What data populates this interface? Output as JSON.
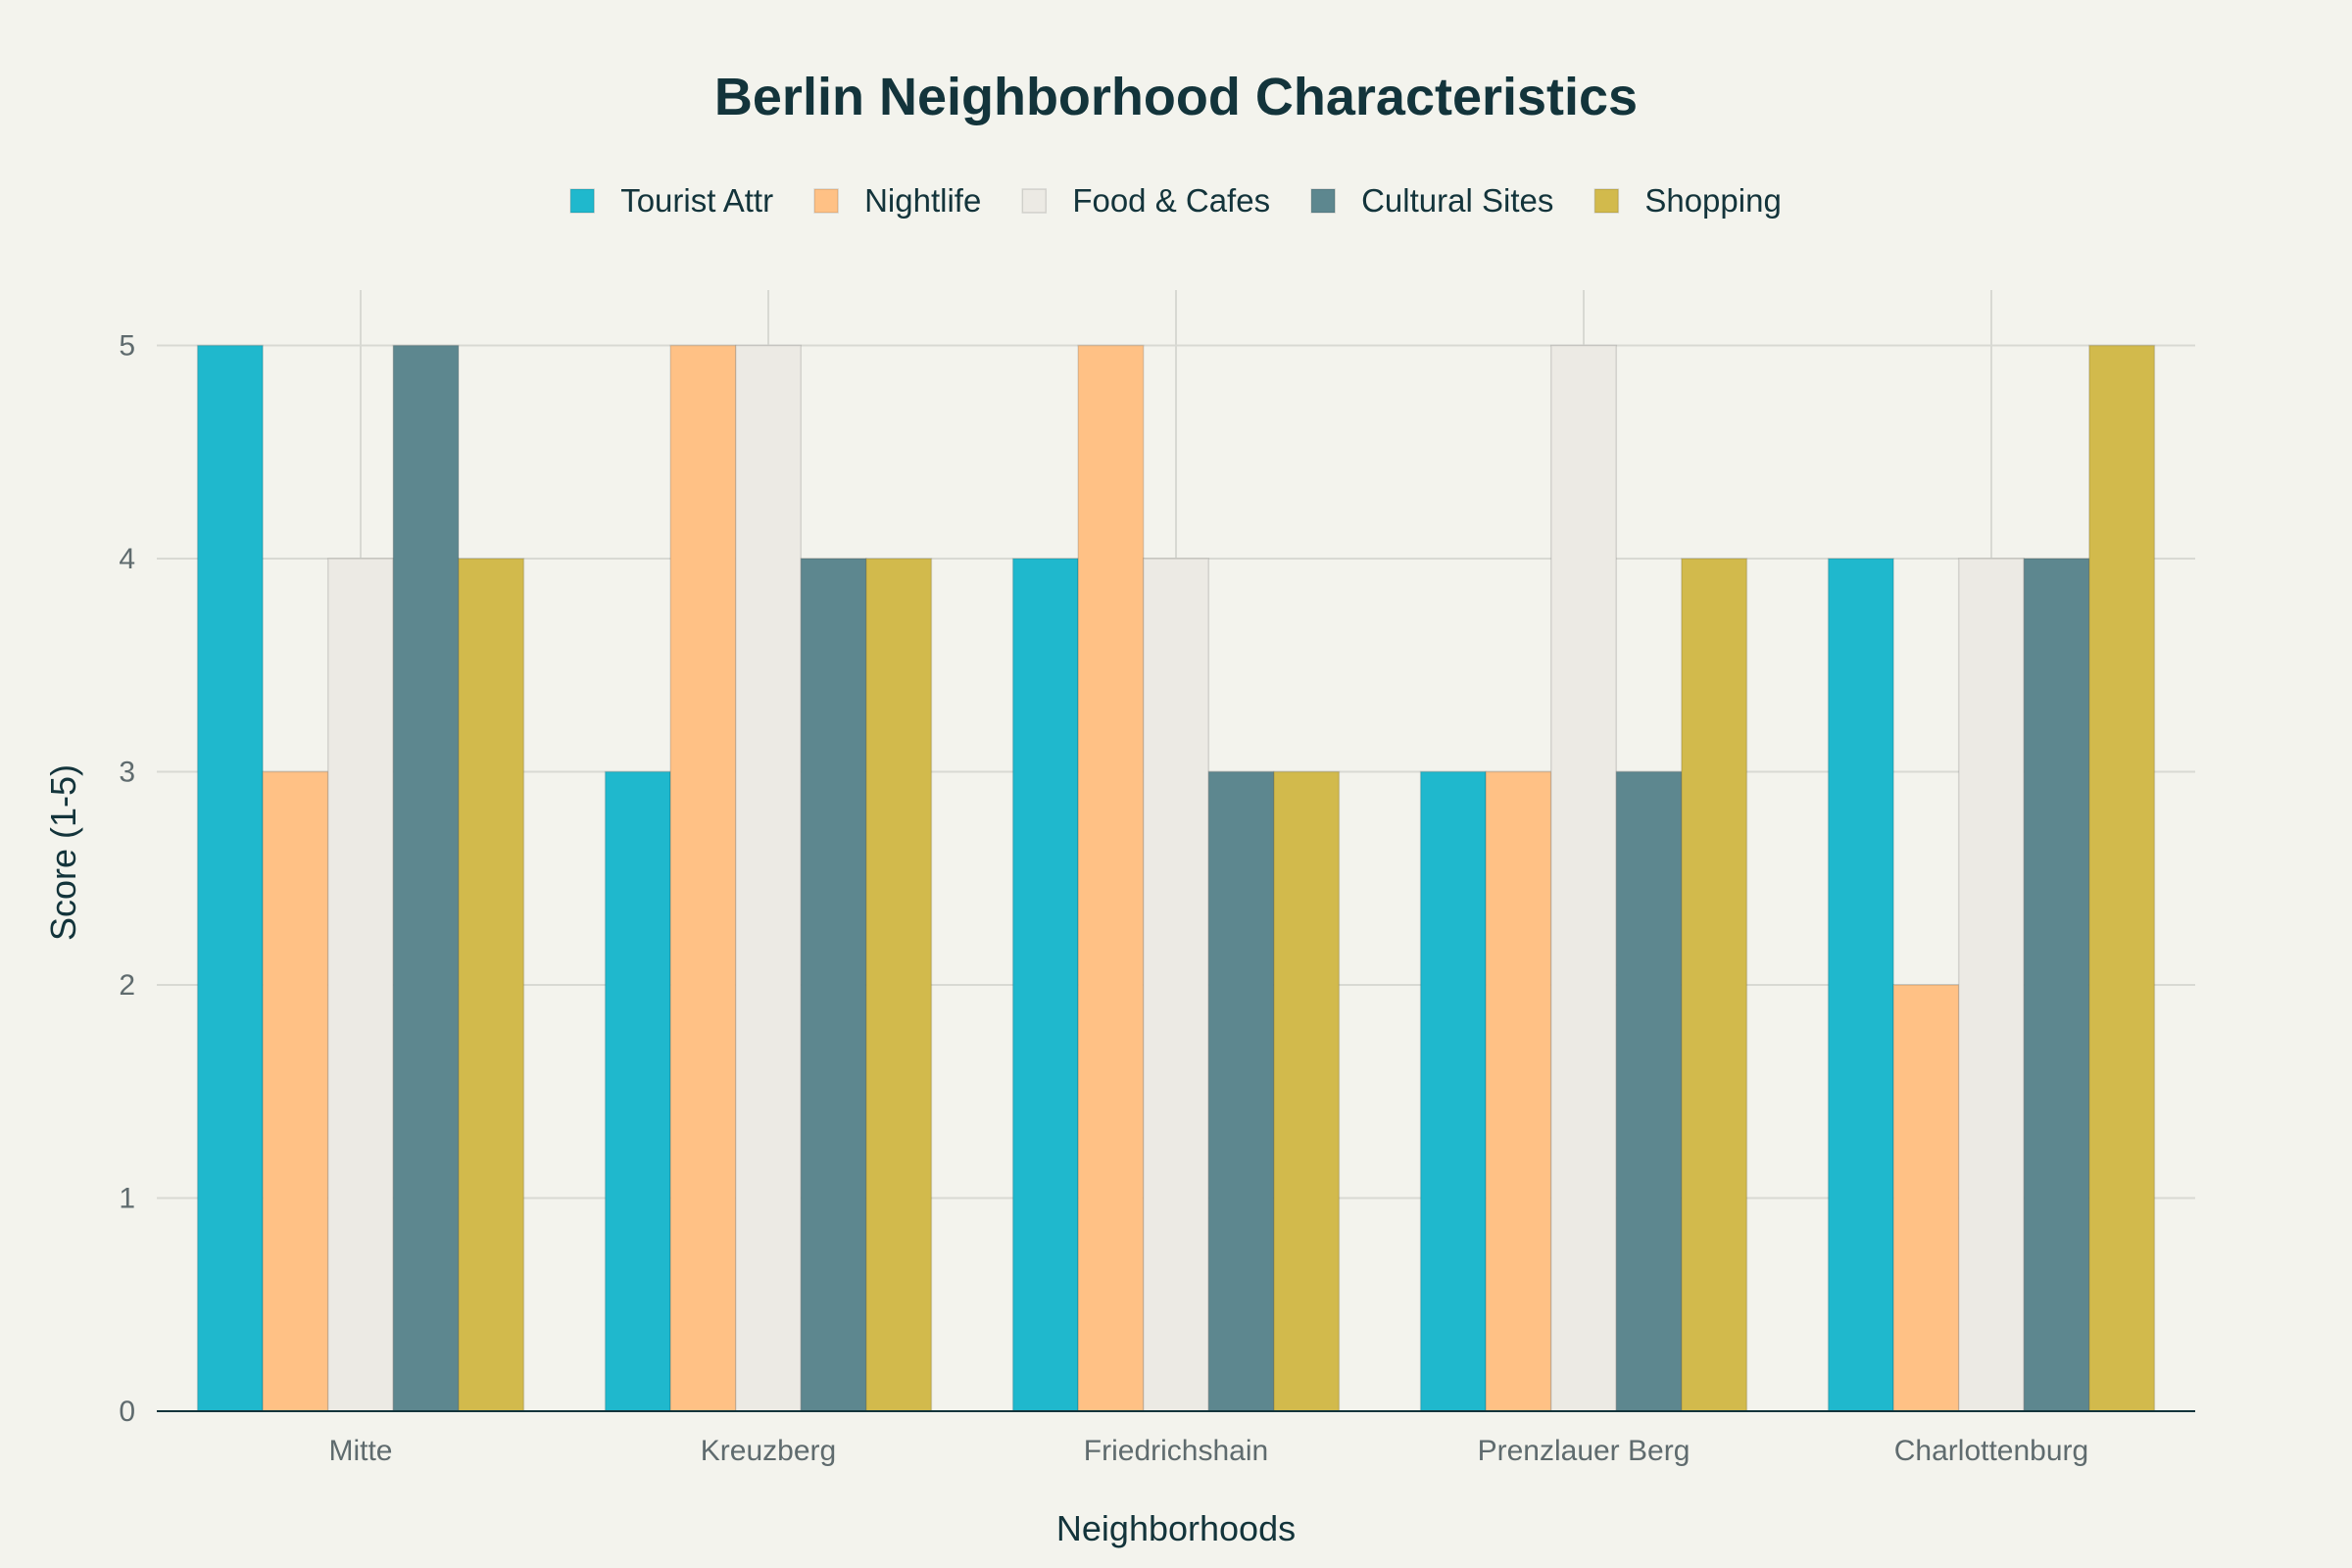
{
  "chart_data": {
    "type": "bar",
    "title": "Berlin Neighborhood Characteristics",
    "xlabel": "Neighborhoods",
    "ylabel": "Score (1-5)",
    "ylim": [
      0,
      5.26
    ],
    "yticks": [
      0,
      1,
      2,
      3,
      4,
      5
    ],
    "grid": true,
    "legend_position": "top-center",
    "categories": [
      "Mitte",
      "Kreuzberg",
      "Friedrichshain",
      "Prenzlauer Berg",
      "Charlottenburg"
    ],
    "series": [
      {
        "name": "Tourist Attr",
        "color": "#1fb8cd",
        "values": [
          5,
          3,
          4,
          3,
          4
        ]
      },
      {
        "name": "Nightlife",
        "color": "#ffc185",
        "values": [
          3,
          5,
          5,
          3,
          2
        ]
      },
      {
        "name": "Food & Cafes",
        "color": "#eceae4",
        "values": [
          4,
          5,
          4,
          5,
          4
        ]
      },
      {
        "name": "Cultural Sites",
        "color": "#5d878f",
        "values": [
          5,
          4,
          3,
          3,
          4
        ]
      },
      {
        "name": "Shopping",
        "color": "#d2ba4c",
        "values": [
          4,
          4,
          3,
          4,
          5
        ]
      }
    ]
  }
}
